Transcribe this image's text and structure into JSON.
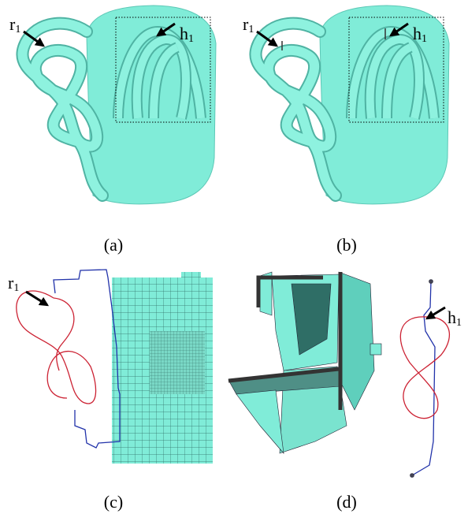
{
  "panels": [
    {
      "caption": "(a)",
      "labels": [
        {
          "base": "r",
          "sub": "1"
        },
        {
          "base": "h",
          "sub": "1"
        }
      ]
    },
    {
      "caption": "(b)",
      "labels": [
        {
          "base": "r",
          "sub": "1"
        },
        {
          "base": "h",
          "sub": "1"
        }
      ]
    },
    {
      "caption": "(c)",
      "labels": [
        {
          "base": "r",
          "sub": "1"
        }
      ]
    },
    {
      "caption": "(d)",
      "labels": [
        {
          "base": "h",
          "sub": "1"
        }
      ]
    }
  ]
}
